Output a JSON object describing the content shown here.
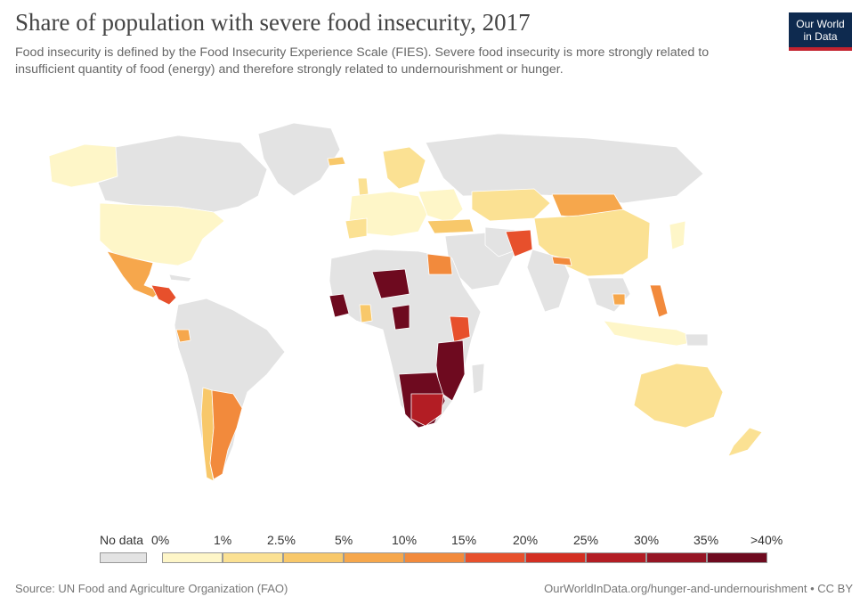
{
  "title": "Share of population with severe food insecurity, 2017",
  "subtitle": "Food insecurity is defined by the Food Insecurity Experience Scale (FIES). Severe food insecurity is more strongly related to insufficient quantity of food (energy) and therefore strongly related to undernourishment or hunger.",
  "logo": {
    "line1": "Our World",
    "line2": "in Data"
  },
  "legend": {
    "no_data_label": "No data",
    "no_data_color": "#e3e3e3",
    "bins": [
      {
        "label": "0%",
        "color": "#fef6c8"
      },
      {
        "label": "1%",
        "color": "#fbe193"
      },
      {
        "label": "2.5%",
        "color": "#f8c86a"
      },
      {
        "label": "5%",
        "color": "#f6a74c"
      },
      {
        "label": "10%",
        "color": "#f28a3c"
      },
      {
        "label": "15%",
        "color": "#e7502c"
      },
      {
        "label": "20%",
        "color": "#d32f22"
      },
      {
        "label": "25%",
        "color": "#b31d24"
      },
      {
        "label": "30%",
        "color": "#951524"
      },
      {
        "label": "35%",
        "color": "#6e0a1f"
      }
    ],
    "last_label": ">40%"
  },
  "source": "Source: UN Food and Agriculture Organization (FAO)",
  "credit": "OurWorldInData.org/hunger-and-undernourishment • CC BY"
}
